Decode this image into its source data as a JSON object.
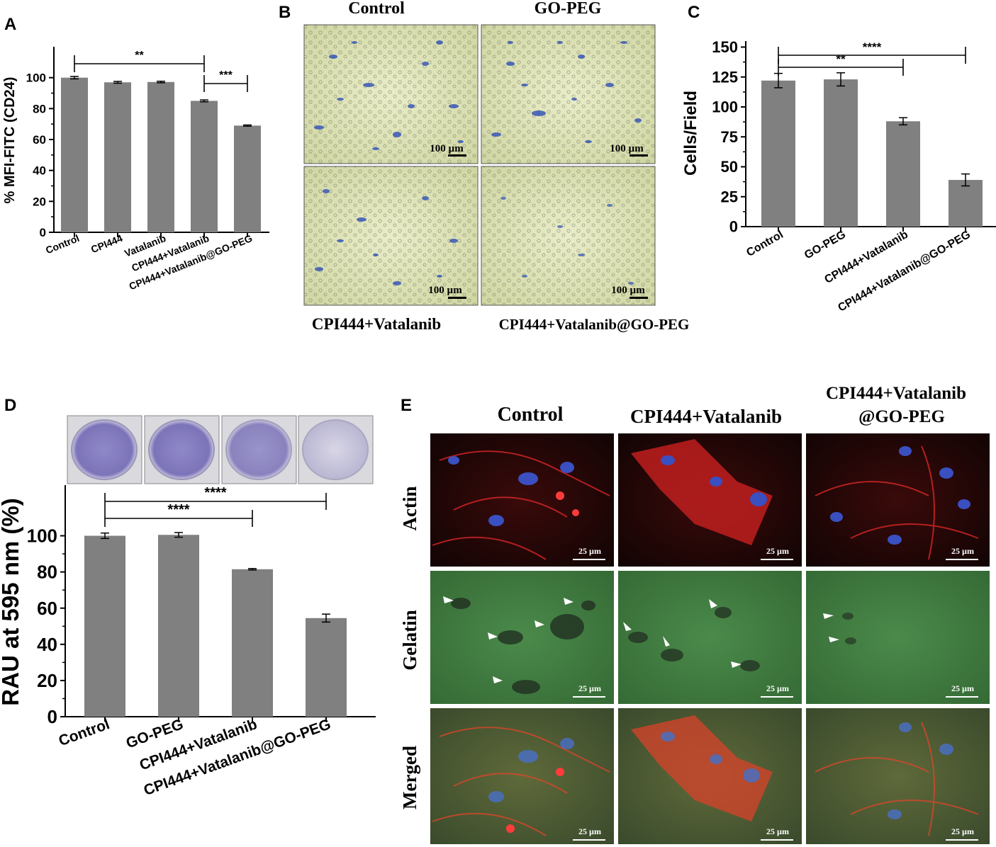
{
  "panels": {
    "A": {
      "letter": "A"
    },
    "B": {
      "letter": "B",
      "conditions": [
        "Control",
        "GO-PEG",
        "CPI444+Vatalanib",
        "CPI444+Vatalanib@GO-PEG"
      ],
      "scale_label": "100 µm"
    },
    "C": {
      "letter": "C"
    },
    "D": {
      "letter": "D"
    },
    "E": {
      "letter": "E",
      "columns": [
        "Control",
        "CPI444+Vatalanib",
        "CPI444+Vatalanib",
        "@GO-PEG"
      ],
      "rows": [
        "Actin",
        "Gelatin",
        "Merged"
      ],
      "scale_label": "25 µm"
    }
  },
  "colors": {
    "bar": "#808080",
    "axis": "#000000",
    "blue_stain": "#2f4fb8",
    "actin_red": "#e02a2a",
    "gelatin_green": "#3f7a3f",
    "well_purple": "#8f88c8"
  },
  "chart_data": [
    {
      "type": "bar",
      "panel": "A",
      "categories": [
        "Control",
        "CPI444",
        "Vatalanib",
        "CPI444+Vatalanib",
        "CPI444+Vatalanib@GO-PEG"
      ],
      "values": [
        100,
        97,
        97.2,
        85,
        69
      ],
      "errors": [
        0.8,
        0.6,
        0.5,
        0.6,
        0.4
      ],
      "ylabel": "% MFI-FITC (CD24)",
      "ylim": [
        0,
        120
      ],
      "yticks": [
        0,
        20,
        40,
        60,
        80,
        100
      ],
      "significance": [
        {
          "from": 0,
          "to": 3,
          "label": "**"
        },
        {
          "from": 3,
          "to": 4,
          "label": "***"
        }
      ]
    },
    {
      "type": "bar",
      "panel": "C",
      "categories": [
        "Control",
        "GO-PEG",
        "CPI444+Vatalanib",
        "CPI444+Vatalanib@GO-PEG"
      ],
      "values": [
        122,
        123,
        88,
        39
      ],
      "errors": [
        6,
        5.5,
        3,
        5
      ],
      "ylabel": "Cells/Field",
      "ylim": [
        0,
        155
      ],
      "yticks": [
        0,
        25,
        50,
        75,
        100,
        125,
        150
      ],
      "significance": [
        {
          "from": 0,
          "to": 3,
          "label": "****"
        },
        {
          "from": 0,
          "to": 2,
          "label": "**"
        }
      ]
    },
    {
      "type": "bar",
      "panel": "D",
      "categories": [
        "Control",
        "GO-PEG",
        "CPI444+Vatalanib",
        "CPI444+Vatalanib@GO-PEG"
      ],
      "values": [
        100,
        100.5,
        81.5,
        54.5
      ],
      "errors": [
        1.5,
        1.3,
        0.4,
        2.2
      ],
      "ylabel": "RAU at 595 nm (%)",
      "ylim": [
        0,
        128
      ],
      "yticks": [
        0,
        20,
        40,
        60,
        80,
        100
      ],
      "significance": [
        {
          "from": 0,
          "to": 3,
          "label": "****"
        },
        {
          "from": 0,
          "to": 2,
          "label": "****"
        }
      ]
    }
  ]
}
